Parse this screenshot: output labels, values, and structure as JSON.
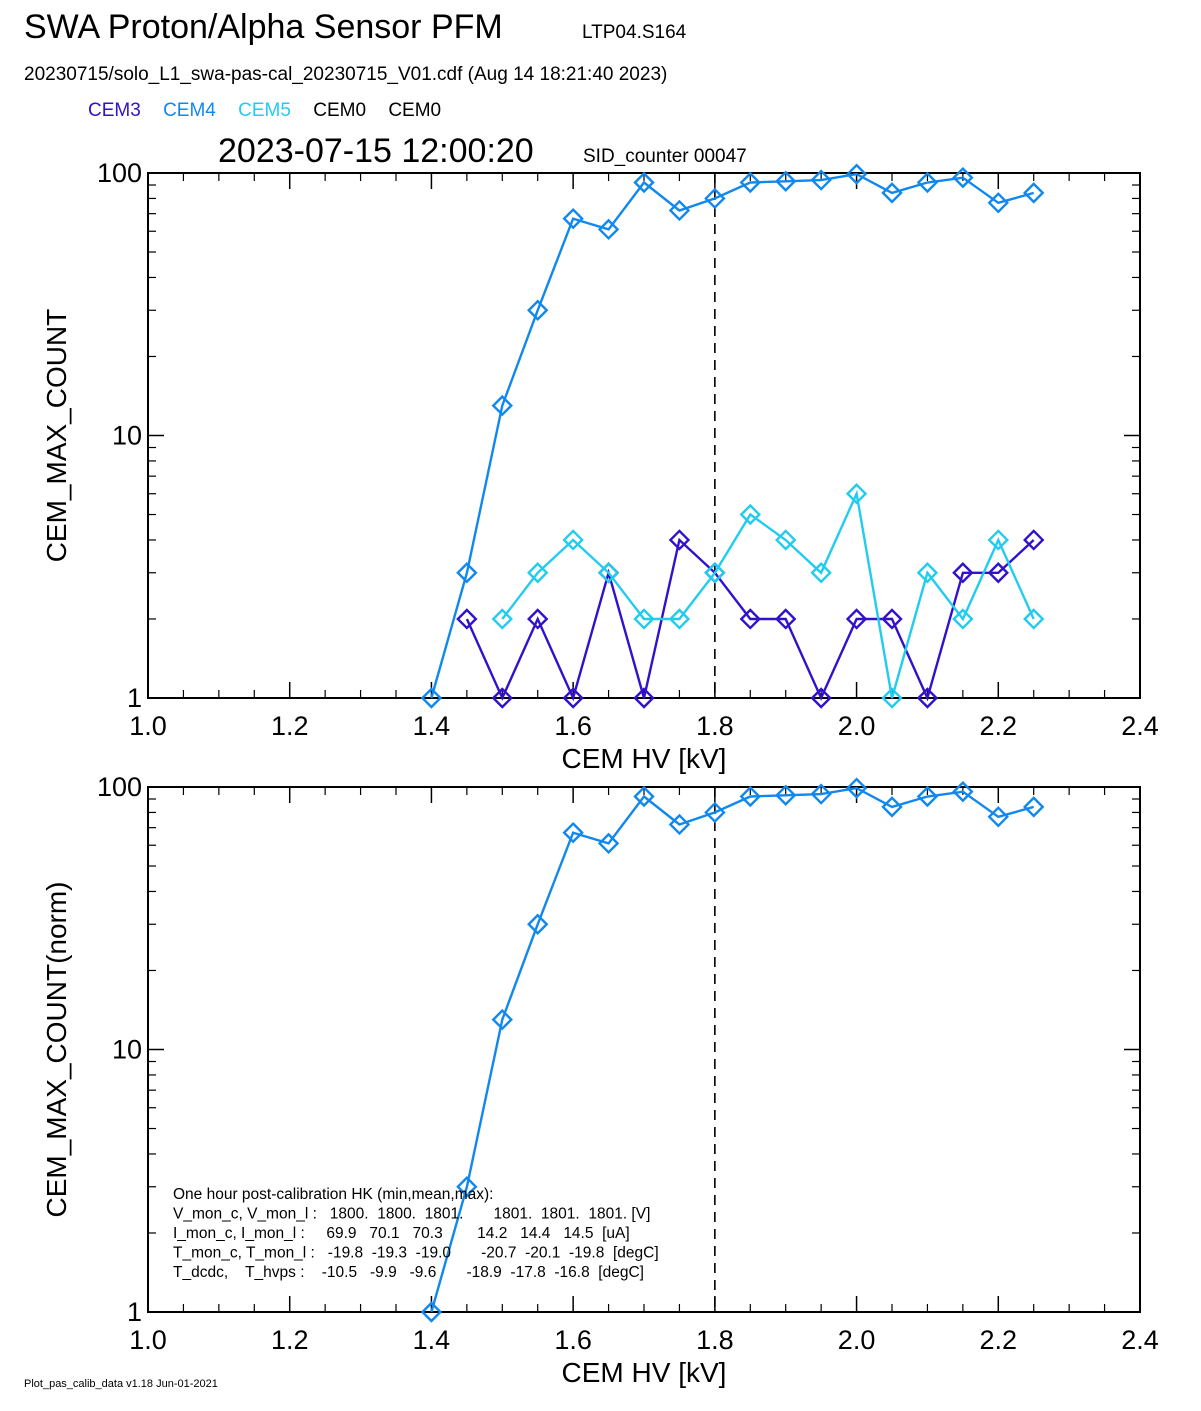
{
  "header": {
    "title": "SWA Proton/Alpha Sensor PFM",
    "title_sub": "LTP04.S164",
    "file_line": "20230715/solo_L1_swa-pas-cal_20230715_V01.cdf  (Aug 14 18:21:40 2023)",
    "timestamp": "2023-07-15 12:00:20",
    "sid": "SID_counter 00047"
  },
  "legend": [
    {
      "label": "CEM3",
      "color": "#3311cc"
    },
    {
      "label": "CEM4",
      "color": "#1188ee"
    },
    {
      "label": "CEM5",
      "color": "#22ccee"
    },
    {
      "label": "CEM0",
      "color": "#000000"
    },
    {
      "label": "CEM0",
      "color": "#000000"
    }
  ],
  "footer": "Plot_pas_calib_data v1.18 Jun-01-2021",
  "chart_data": [
    {
      "type": "line",
      "xlabel": "CEM HV [kV]",
      "ylabel": "CEM_MAX_COUNT",
      "xlim": [
        1.0,
        2.4
      ],
      "ylim": [
        1,
        100
      ],
      "yscale": "log",
      "xticks": [
        "1.0",
        "1.2",
        "1.4",
        "1.6",
        "1.8",
        "2.0",
        "2.2",
        "2.4"
      ],
      "yticks": [
        "1",
        "10",
        "100"
      ],
      "vline_x": 1.8,
      "marker": "diamond",
      "series": [
        {
          "name": "CEM3",
          "color": "#3311cc",
          "x": [
            1.45,
            1.5,
            1.55,
            1.6,
            1.65,
            1.7,
            1.75,
            1.8,
            1.85,
            1.9,
            1.95,
            2.0,
            2.05,
            2.1,
            2.15,
            2.2,
            2.25
          ],
          "y": [
            2,
            1,
            2,
            1,
            3,
            1,
            4,
            3,
            2,
            2,
            1,
            2,
            2,
            1,
            3,
            3,
            4
          ]
        },
        {
          "name": "CEM4",
          "color": "#1188ee",
          "x": [
            1.4,
            1.45,
            1.5,
            1.55,
            1.6,
            1.65,
            1.7,
            1.75,
            1.8,
            1.85,
            1.9,
            1.95,
            2.0,
            2.05,
            2.1,
            2.15,
            2.2,
            2.25
          ],
          "y": [
            1,
            3,
            13,
            30,
            67,
            61,
            92,
            72,
            80,
            92,
            93,
            94,
            99,
            84,
            92,
            96,
            77,
            84
          ]
        },
        {
          "name": "CEM5",
          "color": "#22ccee",
          "x": [
            1.5,
            1.55,
            1.6,
            1.65,
            1.7,
            1.75,
            1.8,
            1.85,
            1.9,
            1.95,
            2.0,
            2.05,
            2.1,
            2.15,
            2.2,
            2.25
          ],
          "y": [
            2,
            3,
            4,
            3,
            2,
            2,
            3,
            5,
            4,
            3,
            6,
            1,
            3,
            2,
            4,
            2
          ]
        }
      ]
    },
    {
      "type": "line",
      "xlabel": "CEM HV [kV]",
      "ylabel": "CEM_MAX_COUNT(norm)",
      "xlim": [
        1.0,
        2.4
      ],
      "ylim": [
        1,
        100
      ],
      "yscale": "log",
      "xticks": [
        "1.0",
        "1.2",
        "1.4",
        "1.6",
        "1.8",
        "2.0",
        "2.2",
        "2.4"
      ],
      "yticks": [
        "1",
        "10",
        "100"
      ],
      "vline_x": 1.8,
      "marker": "diamond",
      "series": [
        {
          "name": "CEM4",
          "color": "#1188ee",
          "x": [
            1.4,
            1.45,
            1.5,
            1.55,
            1.6,
            1.65,
            1.7,
            1.75,
            1.8,
            1.85,
            1.9,
            1.95,
            2.0,
            2.05,
            2.1,
            2.15,
            2.2,
            2.25
          ],
          "y": [
            1,
            3,
            13,
            30,
            67,
            61,
            92,
            72,
            80,
            92,
            93,
            94,
            99,
            84,
            92,
            96,
            77,
            84
          ]
        }
      ],
      "annotation": [
        "One hour post-calibration HK (min,mean,max):",
        "V_mon_c, V_mon_l :   1800.  1800.  1801.       1801.  1801.  1801. [V]",
        "I_mon_c, I_mon_l :     69.9   70.1   70.3        14.2   14.4   14.5  [uA]",
        "T_mon_c, T_mon_l :   -19.8  -19.3  -19.0       -20.7  -20.1  -19.8  [degC]",
        "T_dcdc,    T_hvps :    -10.5   -9.9   -9.6       -18.9  -17.8  -16.8  [degC]"
      ]
    }
  ]
}
